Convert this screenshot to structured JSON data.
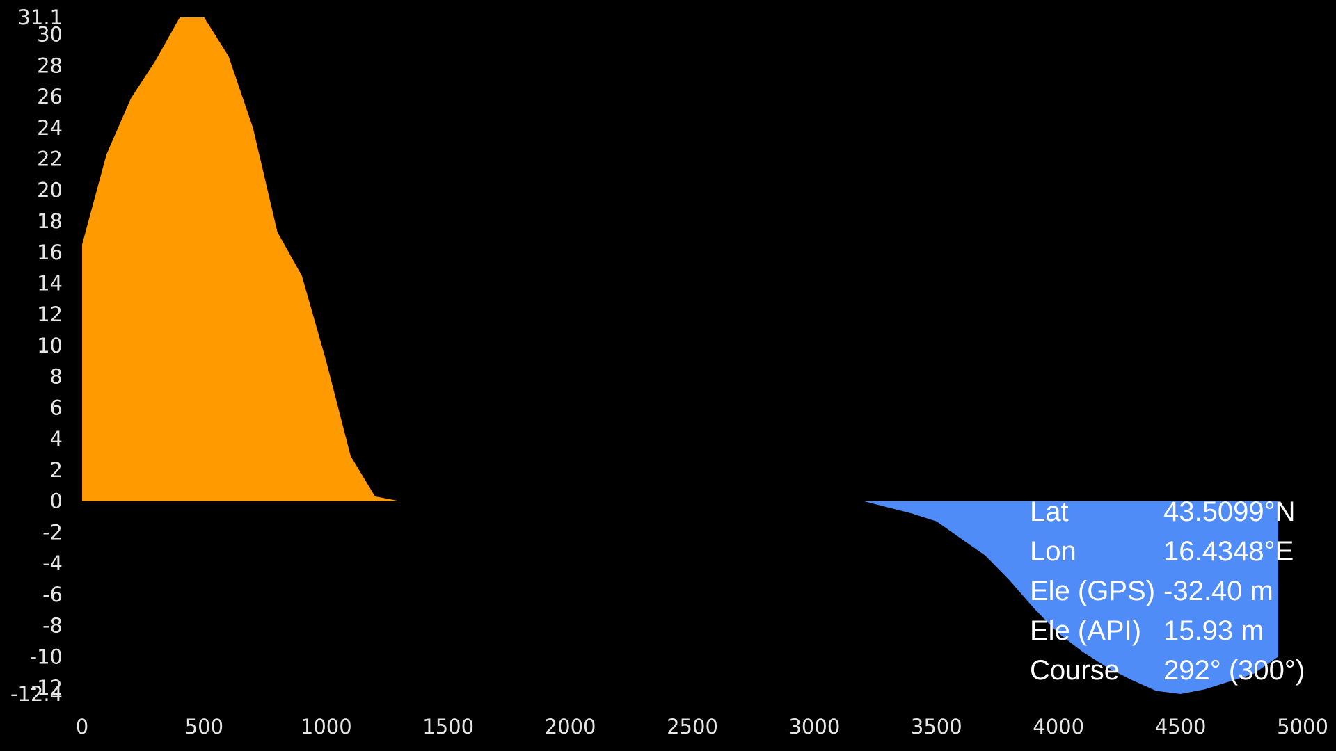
{
  "chart_data": {
    "type": "area",
    "title": "",
    "xlabel": "",
    "ylabel": "",
    "xlim": [
      0,
      5000
    ],
    "ylim": [
      -12.4,
      31.1
    ],
    "grid": false,
    "x_ticks": [
      "0",
      "500",
      "1000",
      "1500",
      "2000",
      "2500",
      "3000",
      "3500",
      "4000",
      "4500",
      "5000"
    ],
    "y_ticks": [
      "31.1",
      "30",
      "28",
      "26",
      "24",
      "22",
      "20",
      "18",
      "16",
      "14",
      "12",
      "10",
      "8",
      "6",
      "4",
      "2",
      "0",
      "-2",
      "-4",
      "-6",
      "-8",
      "-10",
      "-12",
      "-12.4"
    ],
    "series": [
      {
        "color": "#FF9A00",
        "x": [
          0,
          100,
          200,
          300,
          400,
          500,
          600,
          700,
          800,
          900,
          1000,
          1100,
          1200,
          1300,
          1400,
          1500,
          2000,
          2500,
          3000,
          3500,
          4000,
          4500,
          4900
        ],
        "y": [
          16.5,
          22.3,
          25.9,
          28.3,
          31.1,
          31.1,
          28.6,
          24.0,
          17.3,
          14.5,
          9.0,
          2.9,
          0.3,
          0.0,
          0.0,
          0.0,
          0.0,
          0.0,
          0.0,
          0.0,
          0.0,
          0.0,
          0.0
        ]
      },
      {
        "color": "#4F8CF7",
        "x": [
          0,
          500,
          1000,
          1500,
          2000,
          2500,
          3000,
          3200,
          3400,
          3500,
          3600,
          3700,
          3800,
          3900,
          4000,
          4100,
          4200,
          4300,
          4400,
          4500,
          4600,
          4700,
          4800,
          4900
        ],
        "y": [
          0,
          0,
          0,
          0,
          0,
          0,
          0,
          0,
          -0.8,
          -1.3,
          -2.4,
          -3.5,
          -5.1,
          -6.9,
          -8.5,
          -9.7,
          -10.7,
          -11.5,
          -12.2,
          -12.4,
          -12.1,
          -11.6,
          -11.1,
          -10.0
        ]
      }
    ]
  },
  "info": {
    "rows": [
      {
        "label": "Lat",
        "value": "43.5099°N"
      },
      {
        "label": "Lon",
        "value": "16.4348°E"
      },
      {
        "label": "Ele (GPS)",
        "value": "-32.40 m"
      },
      {
        "label": "Ele (API)",
        "value": "15.93 m"
      },
      {
        "label": "Course",
        "value": "292° (300°)"
      }
    ]
  }
}
